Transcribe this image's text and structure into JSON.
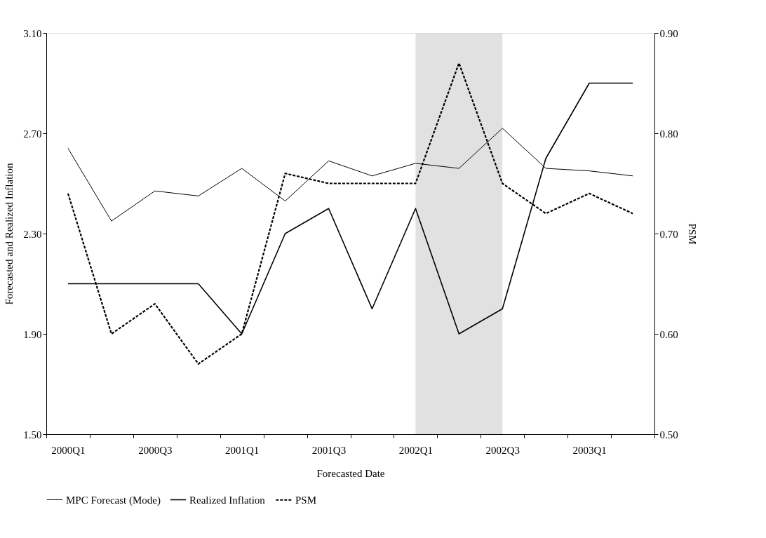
{
  "chart_data": {
    "type": "line",
    "xlabel": "Forecasted Date",
    "ylabel": "Forecasted and Realized Inflation",
    "y2label": "PSM",
    "categories": [
      "2000Q1",
      null,
      "2000Q3",
      null,
      "2001Q1",
      null,
      "2001Q3",
      null,
      "2002Q1",
      null,
      "2002Q3",
      null,
      "2003Q1",
      null
    ],
    "series": [
      {
        "name": "MPC Forecast (Mode)",
        "color": "#000000",
        "line_style": "solid",
        "values": [
          2.64,
          2.35,
          2.47,
          2.45,
          2.56,
          2.43,
          2.59,
          2.53,
          2.58,
          2.56,
          2.72,
          2.56,
          2.55,
          2.53
        ]
      },
      {
        "name": "Realized Inflation",
        "color": "#000000",
        "line_style": "solid",
        "values": [
          2.1,
          2.1,
          2.1,
          2.1,
          1.9,
          2.3,
          2.4,
          2.0,
          2.4,
          1.9,
          2.0,
          2.6,
          2.9,
          2.9
        ]
      },
      {
        "name": "PSM",
        "color": "#000000",
        "line_style": "dashed",
        "axis": "y2",
        "values": [
          0.74,
          0.6,
          0.63,
          0.57,
          0.6,
          0.76,
          0.75,
          0.75,
          0.75,
          0.87,
          0.75,
          0.72,
          0.74,
          0.72
        ]
      }
    ],
    "ylim": [
      1.5,
      3.1
    ],
    "yticks": [
      {
        "value": 1.5,
        "label": "1.50"
      },
      {
        "value": 1.9,
        "label": "1.90"
      },
      {
        "value": 2.3,
        "label": "2.30"
      },
      {
        "value": 2.7,
        "label": "2.70"
      },
      {
        "value": 3.1,
        "label": "3.10"
      }
    ],
    "y2lim": [
      0.5,
      0.9
    ],
    "y2ticks": [
      {
        "value": 0.5,
        "label": "0.50"
      },
      {
        "value": 0.6,
        "label": "0.60"
      },
      {
        "value": 0.7,
        "label": "0.70"
      },
      {
        "value": 0.8,
        "label": "0.80"
      },
      {
        "value": 0.9,
        "label": "0.90"
      }
    ],
    "bands": [
      {
        "axis": "x",
        "from": "2002Q1",
        "to": "2002Q3",
        "color": "#d9d9d9"
      }
    ],
    "grid": false,
    "legend": "bottom",
    "marker": "none"
  }
}
